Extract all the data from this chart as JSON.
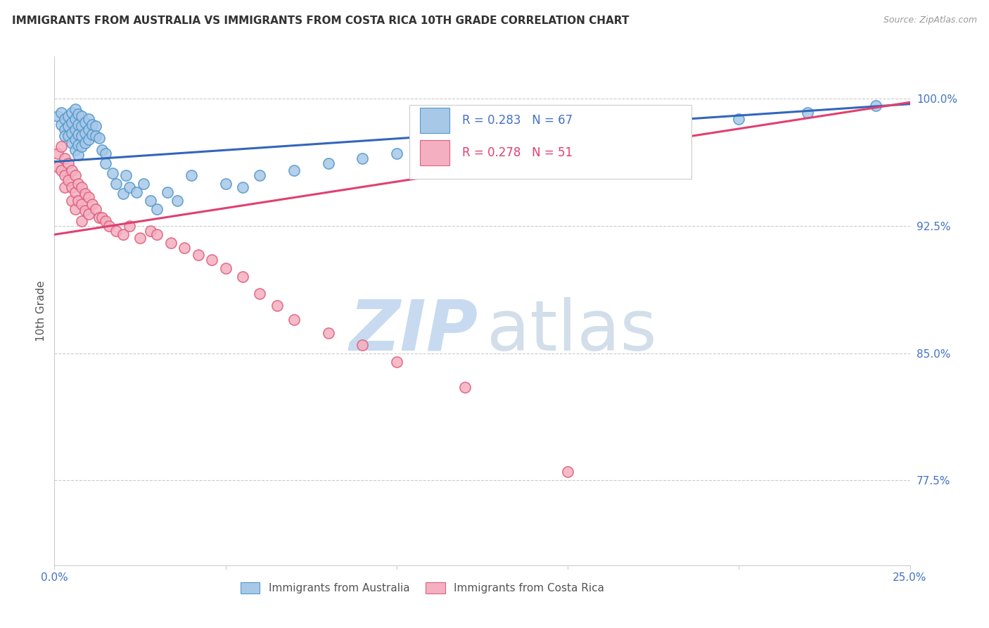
{
  "title": "IMMIGRANTS FROM AUSTRALIA VS IMMIGRANTS FROM COSTA RICA 10TH GRADE CORRELATION CHART",
  "source": "Source: ZipAtlas.com",
  "ylabel": "10th Grade",
  "yticks_labels": [
    "77.5%",
    "85.0%",
    "92.5%",
    "100.0%"
  ],
  "ytick_vals": [
    0.775,
    0.85,
    0.925,
    1.0
  ],
  "xlim": [
    0.0,
    0.25
  ],
  "ylim": [
    0.725,
    1.025
  ],
  "legend_r_australia": "R = 0.283",
  "legend_n_australia": "N = 67",
  "legend_r_costarica": "R = 0.278",
  "legend_n_costarica": "N = 51",
  "color_australia_fill": "#a8c8e8",
  "color_australia_edge": "#5599cc",
  "color_costarica_fill": "#f4b0c0",
  "color_costarica_edge": "#e06080",
  "color_trendline_australia": "#3366bb",
  "color_trendline_costarica": "#e04070",
  "watermark_zip_color": "#c8daf0",
  "watermark_atlas_color": "#c0d0e0",
  "legend_text_color_blue": "#4472c4",
  "legend_text_color_pink": "#e04070",
  "ytick_color": "#4472c4",
  "xtick_color": "#4472c4",
  "grid_color": "#cccccc",
  "spine_color": "#cccccc",
  "ylabel_color": "#555555",
  "title_color": "#333333",
  "source_color": "#999999",
  "aus_x": [
    0.001,
    0.002,
    0.002,
    0.003,
    0.003,
    0.003,
    0.004,
    0.004,
    0.004,
    0.005,
    0.005,
    0.005,
    0.005,
    0.006,
    0.006,
    0.006,
    0.006,
    0.006,
    0.007,
    0.007,
    0.007,
    0.007,
    0.007,
    0.008,
    0.008,
    0.008,
    0.008,
    0.009,
    0.009,
    0.009,
    0.01,
    0.01,
    0.01,
    0.011,
    0.011,
    0.012,
    0.012,
    0.013,
    0.014,
    0.015,
    0.015,
    0.017,
    0.018,
    0.02,
    0.021,
    0.022,
    0.024,
    0.026,
    0.028,
    0.03,
    0.033,
    0.036,
    0.04,
    0.05,
    0.055,
    0.06,
    0.07,
    0.08,
    0.09,
    0.1,
    0.12,
    0.14,
    0.16,
    0.18,
    0.2,
    0.22,
    0.24
  ],
  "aus_y": [
    0.99,
    0.985,
    0.992,
    0.988,
    0.982,
    0.978,
    0.99,
    0.984,
    0.978,
    0.992,
    0.986,
    0.98,
    0.974,
    0.994,
    0.988,
    0.982,
    0.976,
    0.97,
    0.991,
    0.985,
    0.979,
    0.973,
    0.967,
    0.99,
    0.984,
    0.978,
    0.972,
    0.986,
    0.98,
    0.974,
    0.988,
    0.982,
    0.976,
    0.985,
    0.979,
    0.984,
    0.978,
    0.977,
    0.97,
    0.968,
    0.962,
    0.956,
    0.95,
    0.944,
    0.955,
    0.948,
    0.945,
    0.95,
    0.94,
    0.935,
    0.945,
    0.94,
    0.955,
    0.95,
    0.948,
    0.955,
    0.958,
    0.962,
    0.965,
    0.968,
    0.972,
    0.976,
    0.98,
    0.984,
    0.988,
    0.992,
    0.996
  ],
  "cr_x": [
    0.001,
    0.001,
    0.002,
    0.002,
    0.003,
    0.003,
    0.003,
    0.004,
    0.004,
    0.005,
    0.005,
    0.005,
    0.006,
    0.006,
    0.006,
    0.007,
    0.007,
    0.008,
    0.008,
    0.008,
    0.009,
    0.009,
    0.01,
    0.01,
    0.011,
    0.012,
    0.013,
    0.014,
    0.015,
    0.016,
    0.018,
    0.02,
    0.022,
    0.025,
    0.028,
    0.03,
    0.034,
    0.038,
    0.042,
    0.046,
    0.05,
    0.055,
    0.06,
    0.065,
    0.07,
    0.08,
    0.09,
    0.1,
    0.12,
    0.15,
    0.17
  ],
  "cr_y": [
    0.968,
    0.96,
    0.972,
    0.958,
    0.965,
    0.955,
    0.948,
    0.962,
    0.952,
    0.958,
    0.948,
    0.94,
    0.955,
    0.945,
    0.935,
    0.95,
    0.94,
    0.948,
    0.938,
    0.928,
    0.944,
    0.934,
    0.942,
    0.932,
    0.938,
    0.935,
    0.93,
    0.93,
    0.928,
    0.925,
    0.922,
    0.92,
    0.925,
    0.918,
    0.922,
    0.92,
    0.915,
    0.912,
    0.908,
    0.905,
    0.9,
    0.895,
    0.885,
    0.878,
    0.87,
    0.862,
    0.855,
    0.845,
    0.83,
    0.78,
    0.96
  ]
}
